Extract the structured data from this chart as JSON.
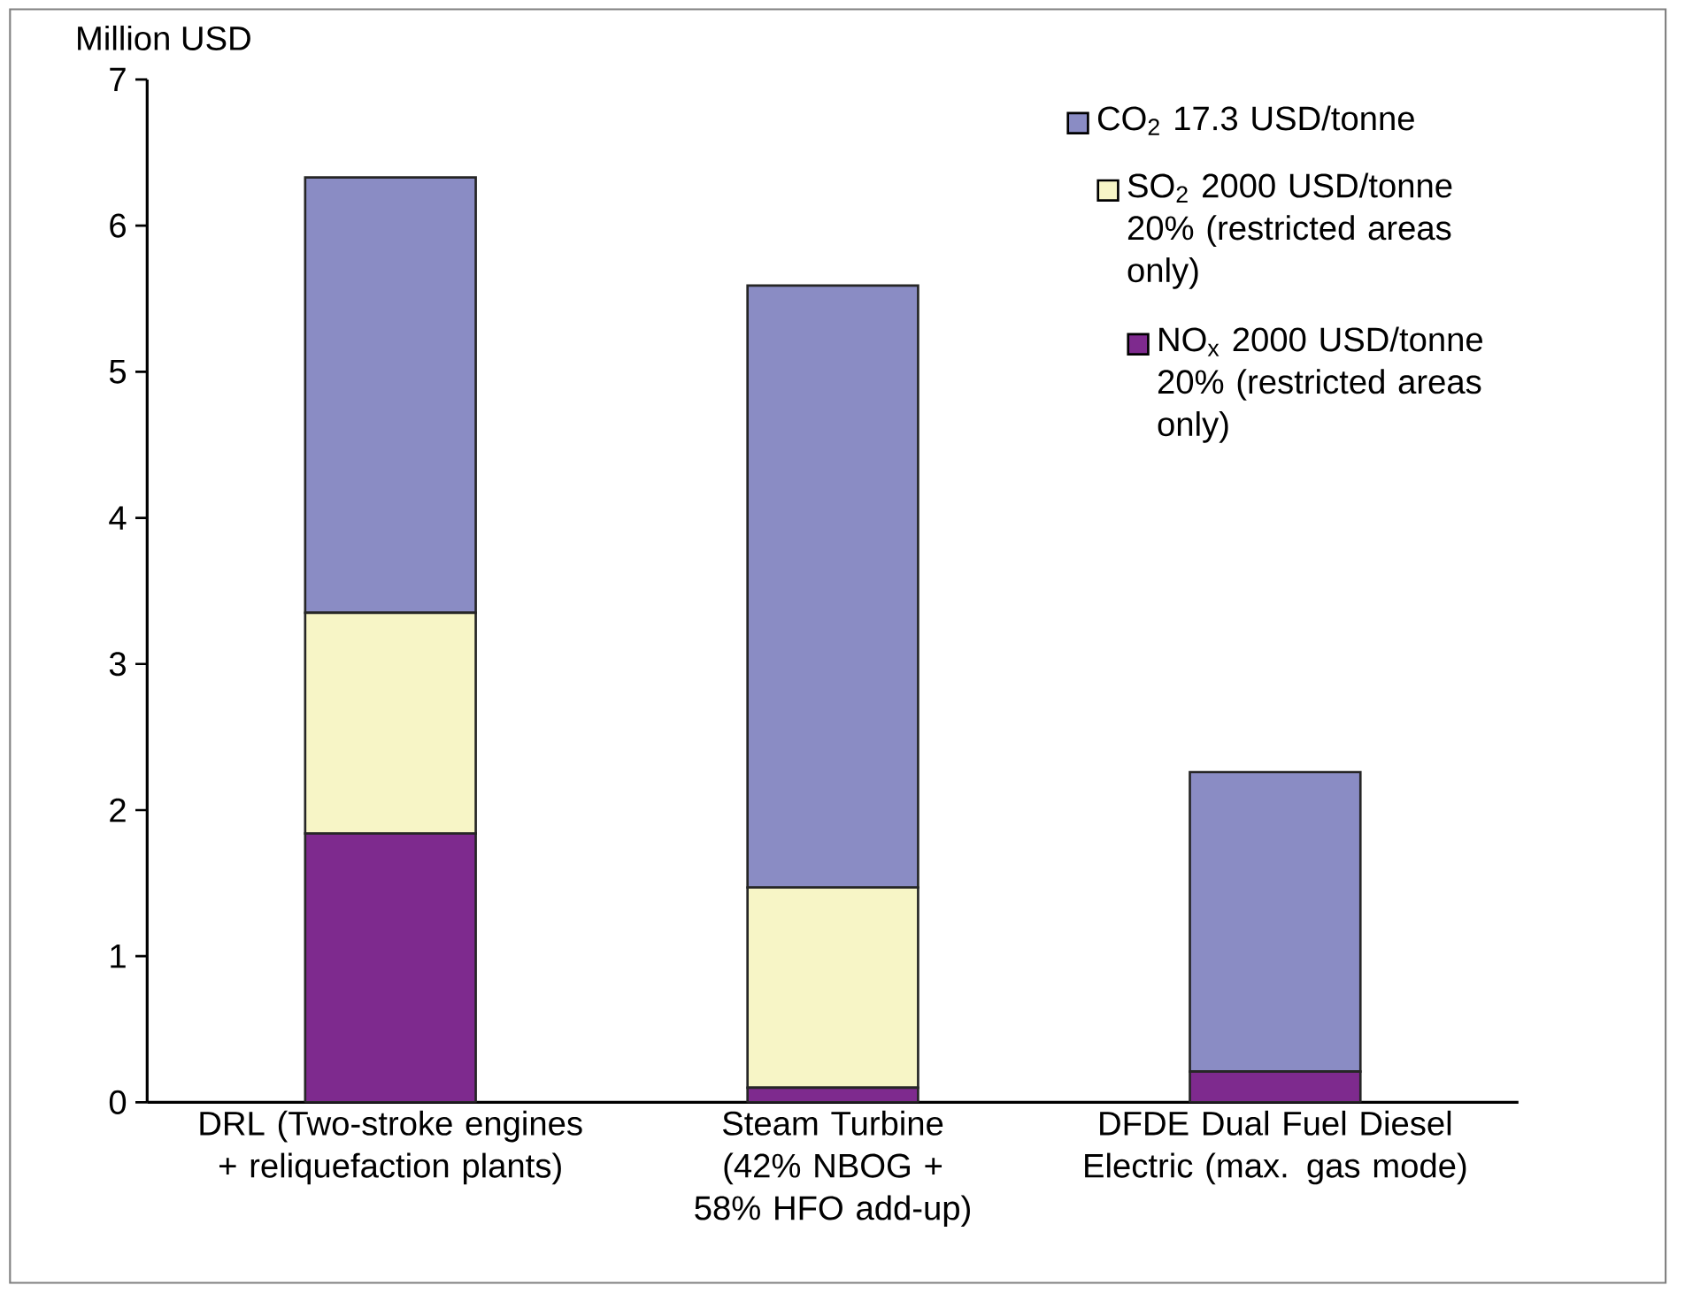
{
  "chart_data": {
    "type": "bar",
    "stacked": true,
    "ylabel": "Million USD",
    "categories": [
      "DRL (Two-stroke engines + reliquefaction plants)",
      "Steam Turbine (42% NBOG + 58% HFO add-up)",
      "DFDE Dual Fuel Diesel Electric (max. gas mode)"
    ],
    "series": [
      {
        "name": "NO$_{x}$ 2000 USD/tonne 20% (restricted areas only)",
        "color": "#7e2a8e",
        "values": [
          1.84,
          0.1,
          0.21
        ]
      },
      {
        "name": "SO$_{2}$ 2000 USD/tonne 20% (restricted areas only)",
        "color": "#f7f5c6",
        "values": [
          1.51,
          1.37,
          0
        ]
      },
      {
        "name": "CO$_{2}$ 17.3 USD/tonne",
        "color": "#8a8cc4",
        "values": [
          2.98,
          4.12,
          2.05
        ]
      }
    ],
    "ylim": [
      0,
      7
    ],
    "yticks": [
      0,
      1,
      2,
      3,
      4,
      5,
      6,
      7
    ],
    "legend": "top right",
    "grid": false
  }
}
